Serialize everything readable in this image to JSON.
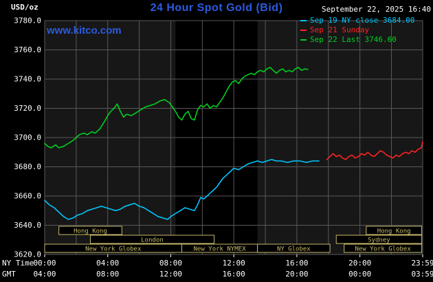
{
  "page": {
    "units_label": "USD/oz",
    "title": "24 Hour Spot Gold (Bid)",
    "datetime": "September 22, 2025 16:40",
    "watermark": "www.kitco.com"
  },
  "colors": {
    "title_blue": "#2b5be0",
    "cyan": "#00c8ff",
    "red": "#ff2222",
    "green": "#00d020",
    "grid": "#5a5a5a",
    "plot_bg": "#171717",
    "band_bg": "#000000",
    "session": "#c9ba6b",
    "text": "#ffffff"
  },
  "legend": [
    {
      "label": "Sep 19 NY close 3684.00",
      "color_key": "cyan"
    },
    {
      "label": "Sep 21 Sunday",
      "color_key": "red"
    },
    {
      "label": "Sep 22 Last 3746.60",
      "color_key": "green"
    }
  ],
  "chart_data": {
    "type": "line",
    "title": "24 Hour Spot Gold (Bid)",
    "xlabel": "",
    "ylabel": "USD/oz",
    "ylim": [
      3620,
      3780
    ],
    "yticks": [
      3620,
      3640,
      3660,
      3680,
      3700,
      3720,
      3740,
      3760,
      3780
    ],
    "ytick_labels": [
      "3620.0",
      "3640.0",
      "3660.0",
      "3680.0",
      "3700.0",
      "3720.0",
      "3740.0",
      "3760.0",
      "3780.0"
    ],
    "annotations": {
      "sep19_ny_close": 3684.0,
      "sep22_last": 3746.6
    },
    "x_axis": {
      "total_hours": 23.983,
      "grid_step_hours": 2,
      "tick_hours": [
        0,
        4,
        8,
        12,
        16,
        20,
        23.983
      ],
      "ny_time": {
        "label": "NY Time",
        "ticks": [
          "00:00",
          "04:00",
          "08:00",
          "12:00",
          "16:00",
          "20:00",
          "23:59"
        ]
      },
      "gmt": {
        "label": "GMT",
        "ticks": [
          "04:00",
          "08:00",
          "12:00",
          "16:00",
          "20:00",
          "00:00",
          "03:59"
        ]
      }
    },
    "highlight_band_hours": [
      8.3,
      13.5
    ],
    "sessions": [
      {
        "row": 0,
        "label": "Hong Kong",
        "start": 0.9,
        "end": 4.9
      },
      {
        "row": 0,
        "label": "Hong Kong",
        "start": 20.4,
        "end": 23.92
      },
      {
        "row": 1,
        "label": "London",
        "start": 2.9,
        "end": 10.75
      },
      {
        "row": 1,
        "label": "Sydney",
        "start": 18.5,
        "end": 23.92
      },
      {
        "row": 2,
        "label": "New York Globex",
        "start": 0.0,
        "end": 8.7
      },
      {
        "row": 2,
        "label": "New York NYMEX",
        "start": 8.7,
        "end": 13.5
      },
      {
        "row": 2,
        "label": "NY Globex",
        "start": 13.5,
        "end": 18.1
      },
      {
        "row": 2,
        "label": "New York Globex",
        "start": 19.0,
        "end": 23.92
      }
    ],
    "series": [
      {
        "name": "Sep 19",
        "color_key": "cyan",
        "points": [
          [
            0,
            3657
          ],
          [
            0.3,
            3654
          ],
          [
            0.6,
            3652
          ],
          [
            0.9,
            3649
          ],
          [
            1.2,
            3646
          ],
          [
            1.5,
            3644
          ],
          [
            1.8,
            3645
          ],
          [
            2.1,
            3647
          ],
          [
            2.4,
            3648
          ],
          [
            2.7,
            3650
          ],
          [
            3,
            3651
          ],
          [
            3.3,
            3652
          ],
          [
            3.6,
            3653
          ],
          [
            3.9,
            3652
          ],
          [
            4.2,
            3651
          ],
          [
            4.5,
            3650
          ],
          [
            4.8,
            3651
          ],
          [
            5.1,
            3653
          ],
          [
            5.4,
            3654
          ],
          [
            5.7,
            3655
          ],
          [
            6,
            3653
          ],
          [
            6.3,
            3652
          ],
          [
            6.6,
            3650
          ],
          [
            6.9,
            3648
          ],
          [
            7.2,
            3646
          ],
          [
            7.5,
            3645
          ],
          [
            7.8,
            3644
          ],
          [
            8,
            3646
          ],
          [
            8.3,
            3648
          ],
          [
            8.6,
            3650
          ],
          [
            8.9,
            3652
          ],
          [
            9.2,
            3651
          ],
          [
            9.5,
            3650
          ],
          [
            9.7,
            3654
          ],
          [
            9.9,
            3659
          ],
          [
            10.1,
            3658
          ],
          [
            10.3,
            3660
          ],
          [
            10.5,
            3662
          ],
          [
            10.7,
            3664
          ],
          [
            10.9,
            3666
          ],
          [
            11.1,
            3669
          ],
          [
            11.3,
            3672
          ],
          [
            11.5,
            3674
          ],
          [
            11.7,
            3676
          ],
          [
            12,
            3679
          ],
          [
            12.3,
            3678
          ],
          [
            12.6,
            3680
          ],
          [
            12.9,
            3682
          ],
          [
            13.2,
            3683
          ],
          [
            13.5,
            3684
          ],
          [
            13.8,
            3683
          ],
          [
            14.1,
            3684
          ],
          [
            14.4,
            3685
          ],
          [
            14.7,
            3684
          ],
          [
            15,
            3684
          ],
          [
            15.4,
            3683
          ],
          [
            15.8,
            3684
          ],
          [
            16.2,
            3684
          ],
          [
            16.6,
            3683
          ],
          [
            17,
            3684
          ],
          [
            17.4,
            3684
          ]
        ]
      },
      {
        "name": "Sep 21 Sunday",
        "color_key": "red",
        "points": [
          [
            17.9,
            3685
          ],
          [
            18.1,
            3687
          ],
          [
            18.3,
            3689
          ],
          [
            18.5,
            3687
          ],
          [
            18.7,
            3688
          ],
          [
            18.9,
            3686
          ],
          [
            19.1,
            3685
          ],
          [
            19.3,
            3687
          ],
          [
            19.5,
            3688
          ],
          [
            19.7,
            3686
          ],
          [
            19.9,
            3687
          ],
          [
            20.1,
            3689
          ],
          [
            20.3,
            3688
          ],
          [
            20.5,
            3690
          ],
          [
            20.7,
            3688
          ],
          [
            20.9,
            3687
          ],
          [
            21.1,
            3689
          ],
          [
            21.3,
            3691
          ],
          [
            21.5,
            3690
          ],
          [
            21.7,
            3688
          ],
          [
            21.9,
            3687
          ],
          [
            22.1,
            3686
          ],
          [
            22.3,
            3688
          ],
          [
            22.5,
            3687
          ],
          [
            22.7,
            3689
          ],
          [
            22.9,
            3690
          ],
          [
            23.1,
            3689
          ],
          [
            23.3,
            3691
          ],
          [
            23.5,
            3690
          ],
          [
            23.7,
            3692
          ],
          [
            23.9,
            3693
          ],
          [
            23.983,
            3697
          ]
        ]
      },
      {
        "name": "Sep 22",
        "color_key": "green",
        "points": [
          [
            0,
            3696
          ],
          [
            0.2,
            3694
          ],
          [
            0.4,
            3693
          ],
          [
            0.7,
            3695
          ],
          [
            0.9,
            3693
          ],
          [
            1.2,
            3694
          ],
          [
            1.5,
            3696
          ],
          [
            1.8,
            3698
          ],
          [
            2,
            3700
          ],
          [
            2.2,
            3702
          ],
          [
            2.5,
            3703
          ],
          [
            2.7,
            3702
          ],
          [
            3,
            3704
          ],
          [
            3.2,
            3703
          ],
          [
            3.5,
            3706
          ],
          [
            3.8,
            3711
          ],
          [
            4,
            3715
          ],
          [
            4.2,
            3718
          ],
          [
            4.4,
            3720
          ],
          [
            4.6,
            3723
          ],
          [
            4.8,
            3718
          ],
          [
            5,
            3714
          ],
          [
            5.2,
            3716
          ],
          [
            5.5,
            3715
          ],
          [
            5.8,
            3717
          ],
          [
            6.1,
            3719
          ],
          [
            6.4,
            3721
          ],
          [
            6.7,
            3722
          ],
          [
            7,
            3723
          ],
          [
            7.3,
            3725
          ],
          [
            7.6,
            3726
          ],
          [
            7.9,
            3724
          ],
          [
            8.1,
            3721
          ],
          [
            8.3,
            3718
          ],
          [
            8.5,
            3714
          ],
          [
            8.7,
            3712
          ],
          [
            8.9,
            3716
          ],
          [
            9.1,
            3718
          ],
          [
            9.3,
            3713
          ],
          [
            9.5,
            3712
          ],
          [
            9.7,
            3719
          ],
          [
            9.9,
            3722
          ],
          [
            10.1,
            3721
          ],
          [
            10.3,
            3723
          ],
          [
            10.5,
            3720
          ],
          [
            10.7,
            3722
          ],
          [
            10.9,
            3721
          ],
          [
            11.1,
            3724
          ],
          [
            11.3,
            3727
          ],
          [
            11.5,
            3731
          ],
          [
            11.7,
            3735
          ],
          [
            11.9,
            3738
          ],
          [
            12.1,
            3739
          ],
          [
            12.3,
            3737
          ],
          [
            12.5,
            3740
          ],
          [
            12.7,
            3742
          ],
          [
            12.9,
            3743
          ],
          [
            13.1,
            3744
          ],
          [
            13.3,
            3743
          ],
          [
            13.5,
            3745
          ],
          [
            13.7,
            3746
          ],
          [
            13.9,
            3745
          ],
          [
            14.1,
            3747
          ],
          [
            14.3,
            3748
          ],
          [
            14.5,
            3746
          ],
          [
            14.7,
            3744
          ],
          [
            14.9,
            3746
          ],
          [
            15.1,
            3747
          ],
          [
            15.3,
            3745
          ],
          [
            15.5,
            3746
          ],
          [
            15.7,
            3745
          ],
          [
            15.9,
            3747
          ],
          [
            16.1,
            3748
          ],
          [
            16.3,
            3746
          ],
          [
            16.5,
            3747
          ],
          [
            16.7,
            3746.6
          ]
        ]
      }
    ]
  }
}
